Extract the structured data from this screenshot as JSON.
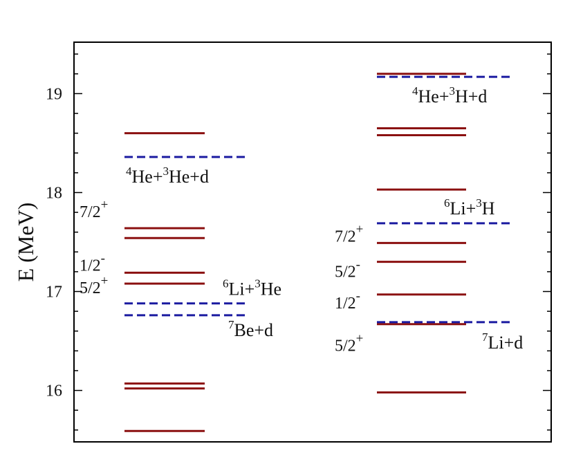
{
  "chart_data": {
    "type": "energy-level-diagram",
    "ylabel": "E  (MeV)",
    "ylim": [
      15.48,
      19.52
    ],
    "yticks": [
      "16",
      "17",
      "18",
      "19"
    ],
    "minor_tick_step": 0.2,
    "colors": {
      "level": "#8b1010",
      "threshold": "#1a1aa0",
      "frame": "#000000"
    },
    "columns": [
      {
        "levels": [
          15.59,
          16.02,
          16.07,
          17.08,
          17.19,
          17.54,
          17.64,
          18.6
        ],
        "thresholds": [
          {
            "energy": 16.76,
            "label": {
              "pre": "7",
              "base": "Be+d",
              "sup": "",
              "post": ""
            }
          },
          {
            "energy": 16.88,
            "label": {
              "pre": "6",
              "base": "Li+",
              "sup": "3",
              "post": "He"
            }
          },
          {
            "energy": 18.36,
            "label": {
              "pre": "4",
              "base": "He+",
              "sup": "3",
              "post": "He+d"
            }
          }
        ],
        "spins": [
          {
            "value": "5/2",
            "sup": "+",
            "energy": 17.08
          },
          {
            "value": "1/2",
            "sup": "-",
            "energy": 17.19
          },
          {
            "value": "7/2",
            "sup": "+",
            "energy": 17.64
          }
        ]
      },
      {
        "levels": [
          15.98,
          16.67,
          16.97,
          17.3,
          17.49,
          18.03,
          18.58,
          18.65,
          19.2
        ],
        "thresholds": [
          {
            "energy": 16.69,
            "label": {
              "pre": "7",
              "base": "Li+d",
              "sup": "",
              "post": ""
            }
          },
          {
            "energy": 17.69,
            "label": {
              "pre": "6",
              "base": "Li+",
              "sup": "3",
              "post": "H"
            }
          },
          {
            "energy": 19.17,
            "label": {
              "pre": "4",
              "base": "He+",
              "sup": "3",
              "post": "H+d"
            }
          }
        ],
        "spins": [
          {
            "value": "5/2",
            "sup": "+",
            "energy": 16.67
          },
          {
            "value": "1/2",
            "sup": "-",
            "energy": 16.97
          },
          {
            "value": "5/2",
            "sup": "-",
            "energy": 17.3
          },
          {
            "value": "7/2",
            "sup": "+",
            "energy": 17.49
          }
        ]
      }
    ]
  }
}
